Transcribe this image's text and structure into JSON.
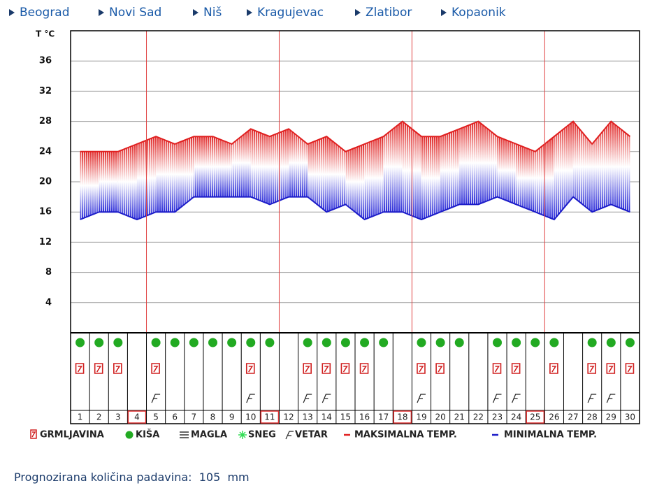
{
  "nav": [
    "Beograd",
    "Novi Sad",
    "Niš",
    "Kragujevac",
    "Zlatibor",
    "Kopaonik"
  ],
  "chart_data": {
    "type": "line",
    "y_label": "T °C",
    "categories": [
      1,
      2,
      3,
      4,
      5,
      6,
      7,
      8,
      9,
      10,
      11,
      12,
      13,
      14,
      15,
      16,
      17,
      18,
      19,
      20,
      21,
      22,
      23,
      24,
      25,
      26,
      27,
      28,
      29,
      30
    ],
    "series": [
      {
        "name": "MAKSIMALNA TEMP.",
        "color": "#e02020",
        "values": [
          24,
          24,
          24,
          25,
          26,
          25,
          26,
          26,
          25,
          27,
          26,
          27,
          25,
          26,
          24,
          25,
          26,
          28,
          26,
          26,
          27,
          28,
          26,
          25,
          24,
          26,
          28,
          25,
          28,
          26
        ]
      },
      {
        "name": "MINIMALNA TEMP.",
        "color": "#1c1cc8",
        "values": [
          15,
          16,
          16,
          15,
          16,
          16,
          18,
          18,
          18,
          18,
          17,
          18,
          18,
          16,
          17,
          15,
          16,
          16,
          15,
          16,
          17,
          17,
          18,
          17,
          16,
          15,
          18,
          16,
          17,
          16
        ]
      }
    ],
    "ylim": [
      0,
      40
    ],
    "yticks": [
      4,
      8,
      12,
      16,
      20,
      24,
      28,
      32,
      36
    ],
    "grid": true,
    "highlighted": [
      false,
      false,
      false,
      true,
      false,
      false,
      false,
      false,
      false,
      false,
      true,
      false,
      false,
      false,
      false,
      false,
      false,
      true,
      false,
      false,
      false,
      false,
      false,
      false,
      true,
      false,
      false,
      false,
      false,
      false
    ],
    "rain": [
      true,
      true,
      true,
      false,
      true,
      true,
      true,
      true,
      true,
      true,
      true,
      false,
      true,
      true,
      true,
      true,
      true,
      false,
      true,
      true,
      true,
      false,
      true,
      true,
      true,
      true,
      false,
      true,
      true,
      true
    ],
    "thunder": [
      true,
      true,
      true,
      false,
      true,
      false,
      false,
      false,
      false,
      true,
      false,
      false,
      true,
      true,
      true,
      true,
      false,
      false,
      true,
      true,
      false,
      false,
      true,
      true,
      false,
      true,
      false,
      true,
      true,
      true
    ],
    "wind": [
      false,
      false,
      false,
      false,
      true,
      false,
      false,
      false,
      false,
      true,
      false,
      false,
      true,
      true,
      false,
      false,
      false,
      false,
      true,
      false,
      false,
      false,
      true,
      true,
      false,
      false,
      false,
      true,
      true,
      false
    ]
  },
  "legend": {
    "thunder": "GRMLJAVINA",
    "rain": "KIŠA",
    "fog": "MAGLA",
    "snow": "SNEG",
    "wind": "VETAR"
  },
  "footer": {
    "label": "Prognozirana količina padavina:",
    "value": 105,
    "unit": "mm"
  }
}
